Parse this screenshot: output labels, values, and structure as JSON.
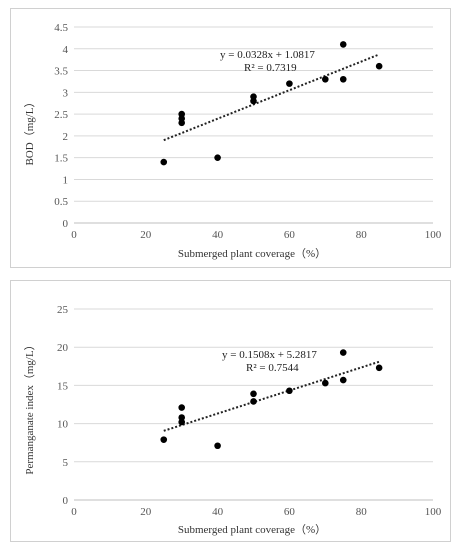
{
  "chart_data": [
    {
      "type": "scatter",
      "xlabel": "Submerged plant coverage（%）",
      "ylabel": "BOD（mg/L）",
      "xlim": [
        0,
        100
      ],
      "ylim": [
        0,
        4.5
      ],
      "xticks": [
        "0",
        "20",
        "40",
        "60",
        "80",
        "100"
      ],
      "yticks": [
        "0",
        "0.5",
        "1",
        "1.5",
        "2",
        "2.5",
        "3",
        "3.5",
        "4",
        "4.5"
      ],
      "grid": true,
      "points": [
        {
          "x": 25,
          "y": 1.4
        },
        {
          "x": 30,
          "y": 2.3
        },
        {
          "x": 30,
          "y": 2.4
        },
        {
          "x": 30,
          "y": 2.5
        },
        {
          "x": 40,
          "y": 1.5
        },
        {
          "x": 50,
          "y": 2.8
        },
        {
          "x": 50,
          "y": 2.9
        },
        {
          "x": 60,
          "y": 3.2
        },
        {
          "x": 70,
          "y": 3.3
        },
        {
          "x": 75,
          "y": 3.3
        },
        {
          "x": 75,
          "y": 4.1
        },
        {
          "x": 85,
          "y": 3.6
        }
      ],
      "trendline": {
        "slope": 0.0328,
        "intercept": 1.0817,
        "x_range": [
          25,
          85
        ]
      },
      "equation": "y = 0.0328x + 1.0817",
      "r2": "R² = 0.7319"
    },
    {
      "type": "scatter",
      "xlabel": "Submerged plant coverage（%）",
      "ylabel": "Permanganate index（mg/L）",
      "xlim": [
        0,
        100
      ],
      "ylim": [
        0,
        25
      ],
      "xticks": [
        "0",
        "20",
        "40",
        "60",
        "80",
        "100"
      ],
      "yticks": [
        "0",
        "5",
        "10",
        "15",
        "20",
        "25"
      ],
      "grid": true,
      "points": [
        {
          "x": 25,
          "y": 7.9
        },
        {
          "x": 30,
          "y": 10.2
        },
        {
          "x": 30,
          "y": 10.8
        },
        {
          "x": 30,
          "y": 12.1
        },
        {
          "x": 40,
          "y": 7.1
        },
        {
          "x": 50,
          "y": 12.9
        },
        {
          "x": 50,
          "y": 13.9
        },
        {
          "x": 60,
          "y": 14.3
        },
        {
          "x": 70,
          "y": 15.3
        },
        {
          "x": 75,
          "y": 15.7
        },
        {
          "x": 75,
          "y": 19.3
        },
        {
          "x": 85,
          "y": 17.3
        }
      ],
      "trendline": {
        "slope": 0.1508,
        "intercept": 5.2817,
        "x_range": [
          25,
          85
        ]
      },
      "equation": "y = 0.1508x + 5.2817",
      "r2": "R² = 0.7544"
    }
  ]
}
